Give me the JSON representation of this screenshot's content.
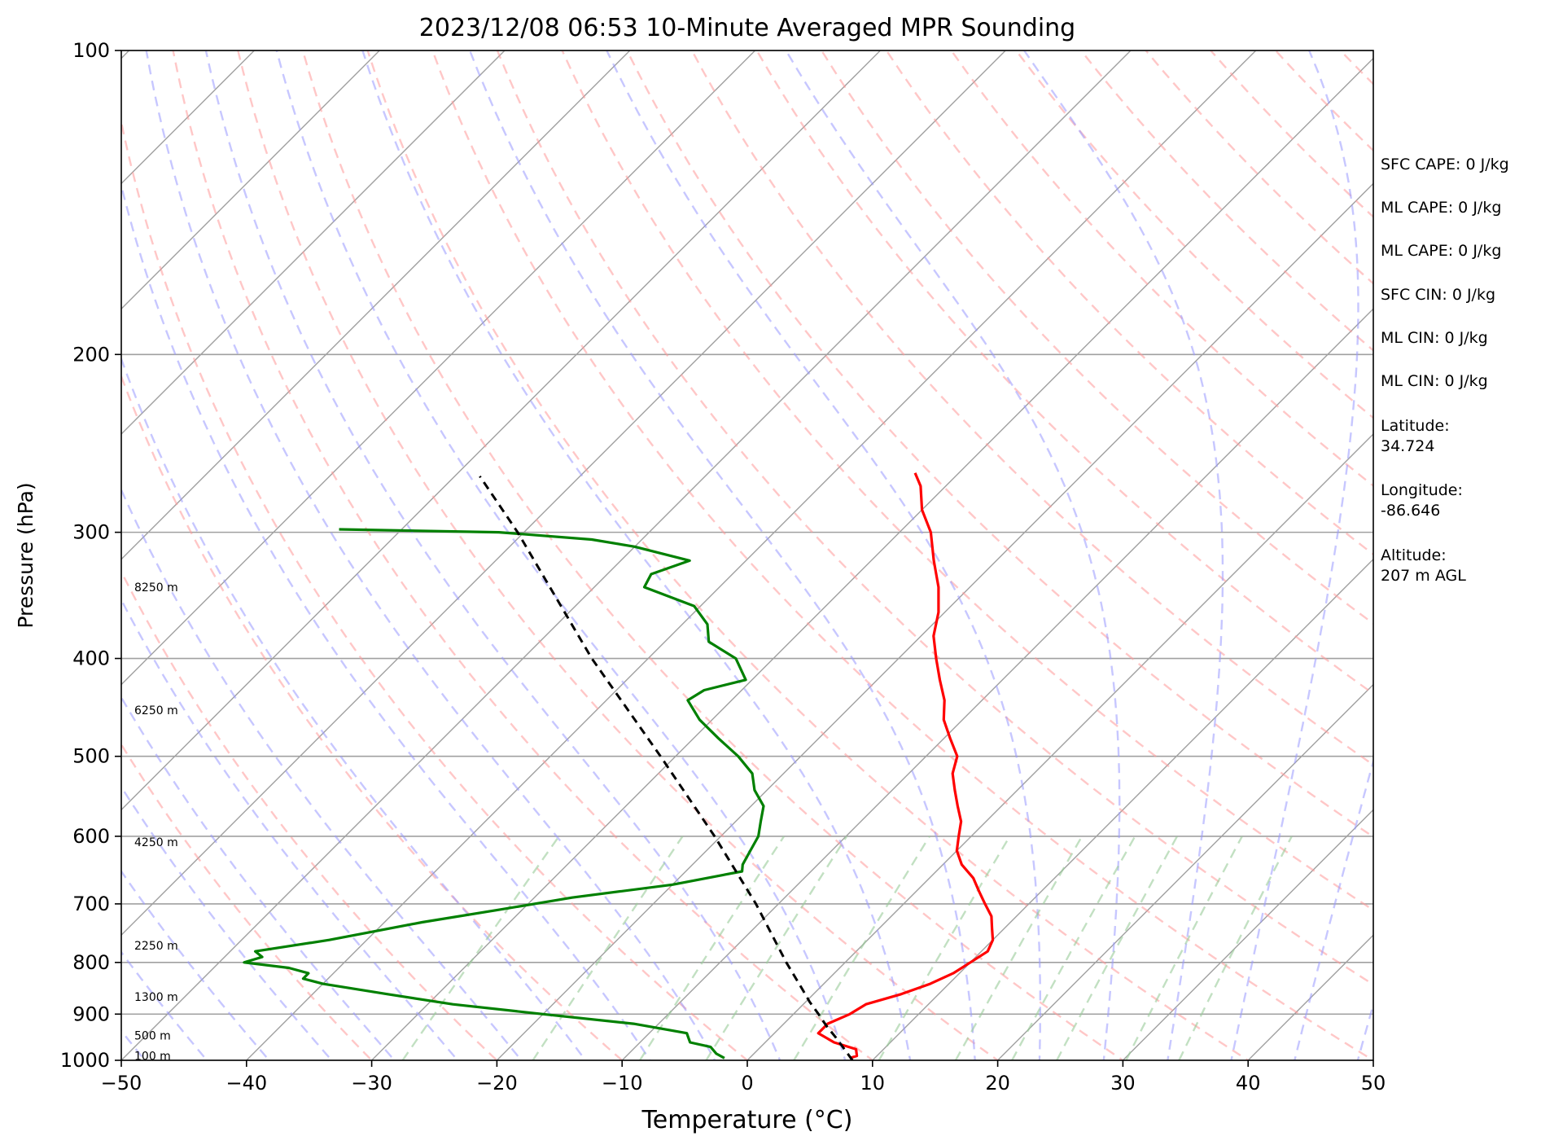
{
  "chart_data": {
    "type": "line",
    "subtype": "skew-t log-p sounding",
    "title": "2023/12/08 06:53 10-Minute Averaged MPR Sounding",
    "xlabel": "Temperature (°C)",
    "ylabel": "Pressure (hPa)",
    "xlim": [
      -50,
      50
    ],
    "ylim": [
      1000,
      100
    ],
    "yscale": "log",
    "x_ticks": [
      -50,
      -40,
      -30,
      -20,
      -10,
      0,
      10,
      20,
      30,
      40,
      50
    ],
    "x_tick_labels": [
      "−50",
      "−40",
      "−30",
      "−20",
      "−10",
      "0",
      "10",
      "20",
      "30",
      "40",
      "50"
    ],
    "y_ticks": [
      1000,
      900,
      800,
      700,
      600,
      500,
      400,
      300,
      200,
      100
    ],
    "y_tick_labels": [
      "1000",
      "900",
      "800",
      "700",
      "600",
      "500",
      "400",
      "300",
      "200",
      "100"
    ],
    "grid": true,
    "series": [
      {
        "kind": "temperature",
        "color": "#ff0000",
        "points": [
          [
            995,
            8.0
          ],
          [
            990,
            8.4
          ],
          [
            975,
            7.8
          ],
          [
            960,
            5.5
          ],
          [
            940,
            3.5
          ],
          [
            920,
            3.5
          ],
          [
            900,
            4.5
          ],
          [
            880,
            5.0
          ],
          [
            860,
            7.0
          ],
          [
            840,
            8.5
          ],
          [
            820,
            9.5
          ],
          [
            800,
            10.0
          ],
          [
            780,
            10.5
          ],
          [
            760,
            10.0
          ],
          [
            740,
            9.0
          ],
          [
            720,
            8.0
          ],
          [
            700,
            6.5
          ],
          [
            680,
            5.0
          ],
          [
            660,
            3.5
          ],
          [
            640,
            1.5
          ],
          [
            620,
            0.0
          ],
          [
            600,
            -1.0
          ],
          [
            580,
            -2.0
          ],
          [
            560,
            -3.5
          ],
          [
            540,
            -5.0
          ],
          [
            520,
            -6.5
          ],
          [
            500,
            -7.5
          ],
          [
            480,
            -9.5
          ],
          [
            460,
            -11.5
          ],
          [
            440,
            -13.0
          ],
          [
            420,
            -15.0
          ],
          [
            400,
            -17.0
          ],
          [
            380,
            -19.0
          ],
          [
            360,
            -20.5
          ],
          [
            340,
            -22.5
          ],
          [
            320,
            -25.0
          ],
          [
            300,
            -27.5
          ],
          [
            285,
            -30.0
          ],
          [
            270,
            -32.0
          ],
          [
            262,
            -33.5
          ]
        ]
      },
      {
        "kind": "dewpoint",
        "color": "#008000",
        "points": [
          [
            995,
            -2.0
          ],
          [
            985,
            -3.0
          ],
          [
            970,
            -4.0
          ],
          [
            960,
            -6.0
          ],
          [
            950,
            -6.5
          ],
          [
            940,
            -7.0
          ],
          [
            920,
            -12.0
          ],
          [
            900,
            -20.0
          ],
          [
            880,
            -28.0
          ],
          [
            860,
            -34.0
          ],
          [
            840,
            -40.0
          ],
          [
            830,
            -42.0
          ],
          [
            820,
            -42.0
          ],
          [
            810,
            -44.0
          ],
          [
            800,
            -48.0
          ],
          [
            790,
            -47.0
          ],
          [
            780,
            -48.0
          ],
          [
            760,
            -43.0
          ],
          [
            730,
            -37.0
          ],
          [
            710,
            -32.0
          ],
          [
            690,
            -27.0
          ],
          [
            670,
            -20.0
          ],
          [
            650,
            -15.5
          ],
          [
            640,
            -16.0
          ],
          [
            620,
            -16.5
          ],
          [
            600,
            -17.0
          ],
          [
            580,
            -18.0
          ],
          [
            560,
            -19.0
          ],
          [
            540,
            -21.0
          ],
          [
            520,
            -22.5
          ],
          [
            500,
            -25.0
          ],
          [
            480,
            -28.0
          ],
          [
            460,
            -31.0
          ],
          [
            440,
            -33.5
          ],
          [
            430,
            -33.0
          ],
          [
            420,
            -30.5
          ],
          [
            400,
            -33.0
          ],
          [
            385,
            -36.5
          ],
          [
            370,
            -38.0
          ],
          [
            355,
            -40.5
          ],
          [
            340,
            -46.0
          ],
          [
            330,
            -46.5
          ],
          [
            320,
            -44.5
          ],
          [
            310,
            -50.0
          ],
          [
            305,
            -54.0
          ],
          [
            300,
            -62.0
          ],
          [
            298,
            -75.0
          ]
        ]
      },
      {
        "kind": "parcel",
        "color": "#000000",
        "style": "dashed",
        "points": [
          [
            1000,
            8.4
          ],
          [
            950,
            5.3
          ],
          [
            925,
            3.6
          ],
          [
            900,
            2.0
          ],
          [
            875,
            0.3
          ],
          [
            850,
            -1.3
          ],
          [
            800,
            -4.7
          ],
          [
            700,
            -11.8
          ],
          [
            600,
            -20.5
          ],
          [
            500,
            -31.2
          ],
          [
            400,
            -44.5
          ],
          [
            300,
            -60.5
          ],
          [
            264,
            -68.0
          ]
        ]
      }
    ],
    "height_labels": [
      {
        "p": 990,
        "text": "100 m"
      },
      {
        "p": 945,
        "text": "500 m"
      },
      {
        "p": 865,
        "text": "1300 m"
      },
      {
        "p": 770,
        "text": "2250 m"
      },
      {
        "p": 608,
        "text": "4250 m"
      },
      {
        "p": 450,
        "text": "6250 m"
      },
      {
        "p": 340,
        "text": "8250 m"
      }
    ]
  },
  "info_panel": {
    "sfc_cape": "SFC CAPE: 0 J/kg",
    "ml_cape": "ML CAPE: 0 J/kg",
    "ml_cape_2": "ML CAPE: 0 J/kg",
    "sfc_cin": "SFC CIN: 0 J/kg",
    "ml_cin": "ML CIN: 0 J/kg",
    "ml_cin_2": "ML CIN: 0 J/kg",
    "latitude": "Latitude:\n34.724",
    "longitude": "Longitude:\n-86.646",
    "altitude": "Altitude:\n207 m AGL"
  },
  "colors": {
    "dry_adiabat": "#ff9999",
    "moist_adiabat": "#9999ff",
    "mixing_ratio": "#99cc99",
    "isotherm": "#a0a0a0",
    "isobar": "#a0a0a0"
  }
}
